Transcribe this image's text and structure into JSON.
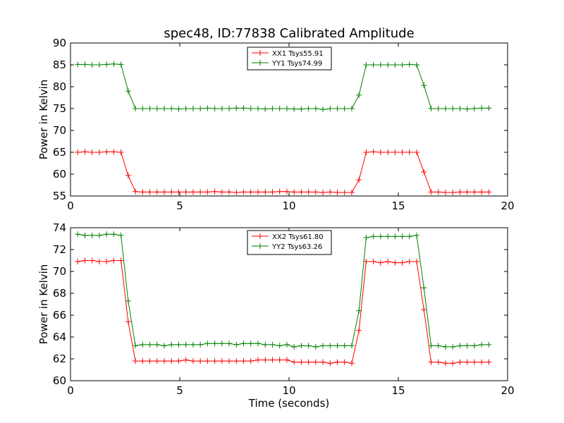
{
  "title": "spec48, ID:77838 Calibrated Amplitude",
  "chart_data": [
    {
      "type": "line",
      "title": "spec48, ID:77838 Calibrated Amplitude",
      "xlabel": "",
      "ylabel": "Power in Kelvin",
      "xlim": [
        0,
        20
      ],
      "ylim": [
        55,
        90
      ],
      "xticks": [
        "0",
        "5",
        "10",
        "15",
        "20"
      ],
      "yticks": [
        "55",
        "60",
        "65",
        "70",
        "75",
        "80",
        "85",
        "90"
      ],
      "legend_position": "top-center",
      "grid": false,
      "x": [
        0.33,
        0.66,
        0.99,
        1.32,
        1.65,
        1.98,
        2.31,
        2.64,
        2.97,
        3.3,
        3.63,
        3.96,
        4.29,
        4.62,
        4.95,
        5.28,
        5.61,
        5.94,
        6.27,
        6.6,
        6.93,
        7.26,
        7.59,
        7.92,
        8.25,
        8.58,
        8.91,
        9.24,
        9.57,
        9.9,
        10.23,
        10.56,
        10.89,
        11.22,
        11.55,
        11.88,
        12.21,
        12.54,
        12.87,
        13.2,
        13.53,
        13.86,
        14.19,
        14.52,
        14.85,
        15.18,
        15.51,
        15.84,
        16.17,
        16.5,
        16.83,
        17.16,
        17.49,
        17.82,
        18.15,
        18.48,
        18.81,
        19.14
      ],
      "series": [
        {
          "name": "XX1 Tsys55.91",
          "color": "#ff0000",
          "values": [
            65.0,
            65.1,
            65.0,
            65.0,
            65.1,
            65.1,
            65.0,
            59.7,
            56.0,
            55.9,
            55.9,
            55.9,
            55.9,
            55.9,
            55.9,
            55.9,
            55.9,
            55.9,
            55.9,
            56.0,
            55.9,
            55.9,
            55.8,
            55.9,
            55.9,
            55.9,
            55.9,
            55.9,
            56.0,
            56.0,
            55.9,
            55.9,
            55.9,
            55.9,
            55.8,
            55.9,
            55.8,
            55.8,
            55.8,
            58.7,
            65.0,
            65.1,
            65.0,
            65.0,
            65.0,
            65.0,
            65.0,
            65.0,
            60.5,
            55.9,
            55.9,
            55.8,
            55.8,
            55.9,
            55.9,
            55.9,
            55.9,
            55.9
          ]
        },
        {
          "name": "YY1 Tsys74.99",
          "color": "#008000",
          "values": [
            85.1,
            85.1,
            85.0,
            85.0,
            85.1,
            85.2,
            85.1,
            79.0,
            75.0,
            75.0,
            75.0,
            75.0,
            75.0,
            75.0,
            74.9,
            75.0,
            75.0,
            75.0,
            75.1,
            75.0,
            75.0,
            75.0,
            75.1,
            75.1,
            75.0,
            75.0,
            74.9,
            75.0,
            75.0,
            75.0,
            74.9,
            74.9,
            75.0,
            75.0,
            74.8,
            75.0,
            75.0,
            75.0,
            75.0,
            78.1,
            85.0,
            85.0,
            85.0,
            85.0,
            85.0,
            85.0,
            85.1,
            85.0,
            80.3,
            75.0,
            75.0,
            75.0,
            75.0,
            75.0,
            74.9,
            75.0,
            75.1,
            75.1
          ]
        }
      ]
    },
    {
      "type": "line",
      "title": "",
      "xlabel": "Time (seconds)",
      "ylabel": "Power in Kelvin",
      "xlim": [
        0,
        20
      ],
      "ylim": [
        60,
        74
      ],
      "xticks": [
        "0",
        "5",
        "10",
        "15",
        "20"
      ],
      "yticks": [
        "60",
        "62",
        "64",
        "66",
        "68",
        "70",
        "72",
        "74"
      ],
      "legend_position": "top-center",
      "grid": false,
      "x": [
        0.33,
        0.66,
        0.99,
        1.32,
        1.65,
        1.98,
        2.31,
        2.64,
        2.97,
        3.3,
        3.63,
        3.96,
        4.29,
        4.62,
        4.95,
        5.28,
        5.61,
        5.94,
        6.27,
        6.6,
        6.93,
        7.26,
        7.59,
        7.92,
        8.25,
        8.58,
        8.91,
        9.24,
        9.57,
        9.9,
        10.23,
        10.56,
        10.89,
        11.22,
        11.55,
        11.88,
        12.21,
        12.54,
        12.87,
        13.2,
        13.53,
        13.86,
        14.19,
        14.52,
        14.85,
        15.18,
        15.51,
        15.84,
        16.17,
        16.5,
        16.83,
        17.16,
        17.49,
        17.82,
        18.15,
        18.48,
        18.81,
        19.14
      ],
      "series": [
        {
          "name": "XX2 Tsys61.80",
          "color": "#ff0000",
          "values": [
            70.9,
            71.0,
            71.0,
            70.9,
            70.9,
            71.0,
            71.0,
            65.4,
            61.8,
            61.8,
            61.8,
            61.8,
            61.8,
            61.8,
            61.8,
            61.9,
            61.8,
            61.8,
            61.8,
            61.8,
            61.8,
            61.8,
            61.8,
            61.8,
            61.8,
            61.9,
            61.9,
            61.9,
            61.9,
            61.9,
            61.7,
            61.7,
            61.7,
            61.7,
            61.7,
            61.6,
            61.7,
            61.7,
            61.6,
            64.6,
            70.9,
            70.9,
            70.8,
            70.9,
            70.8,
            70.8,
            70.9,
            70.9,
            66.5,
            61.7,
            61.7,
            61.6,
            61.6,
            61.7,
            61.7,
            61.7,
            61.7,
            61.7
          ]
        },
        {
          "name": "YY2 Tsys63.26",
          "color": "#008000",
          "values": [
            73.4,
            73.3,
            73.3,
            73.3,
            73.4,
            73.4,
            73.3,
            67.3,
            63.2,
            63.3,
            63.3,
            63.3,
            63.2,
            63.3,
            63.3,
            63.3,
            63.3,
            63.3,
            63.4,
            63.4,
            63.4,
            63.4,
            63.3,
            63.4,
            63.4,
            63.4,
            63.3,
            63.3,
            63.2,
            63.3,
            63.1,
            63.2,
            63.2,
            63.1,
            63.2,
            63.2,
            63.2,
            63.2,
            63.2,
            66.4,
            73.1,
            73.2,
            73.2,
            73.2,
            73.2,
            73.2,
            73.2,
            73.3,
            68.5,
            63.2,
            63.2,
            63.1,
            63.1,
            63.2,
            63.2,
            63.2,
            63.3,
            63.3
          ]
        }
      ]
    }
  ]
}
